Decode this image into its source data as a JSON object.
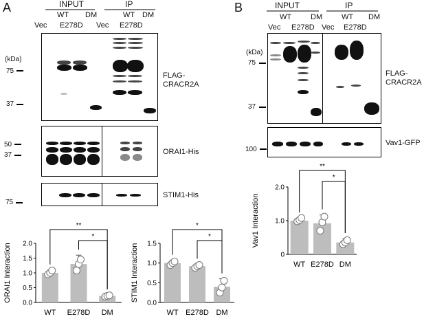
{
  "panel_a": {
    "letter": "A",
    "group_input": "INPUT",
    "group_ip": "IP",
    "lanes_input": {
      "vec": "Vec",
      "wt": "WT",
      "e278d": "E278D",
      "dm": "DM"
    },
    "lanes_ip": {
      "vec": "Vec",
      "wt": "WT",
      "e278d": "E278D",
      "dm": "DM"
    },
    "kda": "(kDa)",
    "blot1": {
      "label_line1": "FLAG-",
      "label_line2": "CRACR2A",
      "marker_75": "75",
      "marker_37": "37"
    },
    "blot2": {
      "label": "ORAI1-His",
      "marker_50": "50",
      "marker_37": "37"
    },
    "blot3": {
      "label": "STIM1-His",
      "marker_75": "75"
    },
    "sig_double": "**",
    "sig_single": "*"
  },
  "panel_b": {
    "letter": "B",
    "group_input": "INPUT",
    "group_ip": "IP",
    "lanes_input": {
      "vec": "Vec",
      "wt": "WT",
      "e278d": "E278D",
      "dm": "DM"
    },
    "lanes_ip": {
      "vec": "Vec",
      "wt": "WT",
      "e278d": "E278D",
      "dm": "DM"
    },
    "kda": "(kDa)",
    "blot1": {
      "label_line1": "FLAG-",
      "label_line2": "CRACR2A",
      "marker_75": "75",
      "marker_37": "37"
    },
    "blot2": {
      "label": "Vav1-GFP",
      "marker_100": "100"
    },
    "sig_double": "**",
    "sig_single": "*"
  },
  "chart_data": [
    {
      "id": "orai1",
      "type": "bar",
      "categories": [
        "WT",
        "E278D",
        "DM"
      ],
      "values": [
        1.0,
        1.3,
        0.22
      ],
      "errors": [
        0.1,
        0.3,
        0.04
      ],
      "points": [
        [
          0.95,
          1.0,
          1.08
        ],
        [
          1.08,
          1.3,
          1.45
        ],
        [
          0.2,
          0.22,
          0.24
        ]
      ],
      "ylabel": "ORAI1 Interaction",
      "ylim": [
        0,
        2.0
      ],
      "yticks": [
        "0.0",
        "0.5",
        "1.0",
        "1.5",
        "2.0"
      ],
      "bar_color": "#bdbdbd",
      "significance": [
        {
          "from": 0,
          "to": 2,
          "label": "**"
        },
        {
          "from": 1,
          "to": 2,
          "label": "*"
        }
      ]
    },
    {
      "id": "stim1",
      "type": "bar",
      "categories": [
        "WT",
        "E278D",
        "DM"
      ],
      "values": [
        1.0,
        0.92,
        0.4
      ],
      "errors": [
        0.07,
        0.05,
        0.2
      ],
      "points": [
        [
          0.95,
          1.0,
          1.04
        ],
        [
          0.88,
          0.92,
          0.95
        ],
        [
          0.25,
          0.38,
          0.55
        ]
      ],
      "ylabel": "STIM1 Interaction",
      "ylim": [
        0,
        1.5
      ],
      "yticks": [
        "0.0",
        "0.5",
        "1.0",
        "1.5"
      ],
      "bar_color": "#bdbdbd",
      "significance": [
        {
          "from": 0,
          "to": 2,
          "label": "*"
        },
        {
          "from": 1,
          "to": 2,
          "label": "*"
        }
      ]
    },
    {
      "id": "vav1",
      "type": "bar",
      "categories": [
        "WT",
        "E278D",
        "DM"
      ],
      "values": [
        1.0,
        0.92,
        0.35
      ],
      "errors": [
        0.08,
        0.25,
        0.12
      ],
      "points": [
        [
          0.98,
          1.02,
          1.08
        ],
        [
          0.7,
          0.95,
          1.12
        ],
        [
          0.3,
          0.35,
          0.42
        ]
      ],
      "ylabel": "Vav1 Interaction",
      "ylim": [
        0,
        2.0
      ],
      "yticks": [
        "0",
        "1.0",
        "2.0"
      ],
      "bar_color": "#bdbdbd",
      "significance": [
        {
          "from": 0,
          "to": 2,
          "label": "**"
        },
        {
          "from": 1,
          "to": 2,
          "label": "*"
        }
      ]
    }
  ]
}
